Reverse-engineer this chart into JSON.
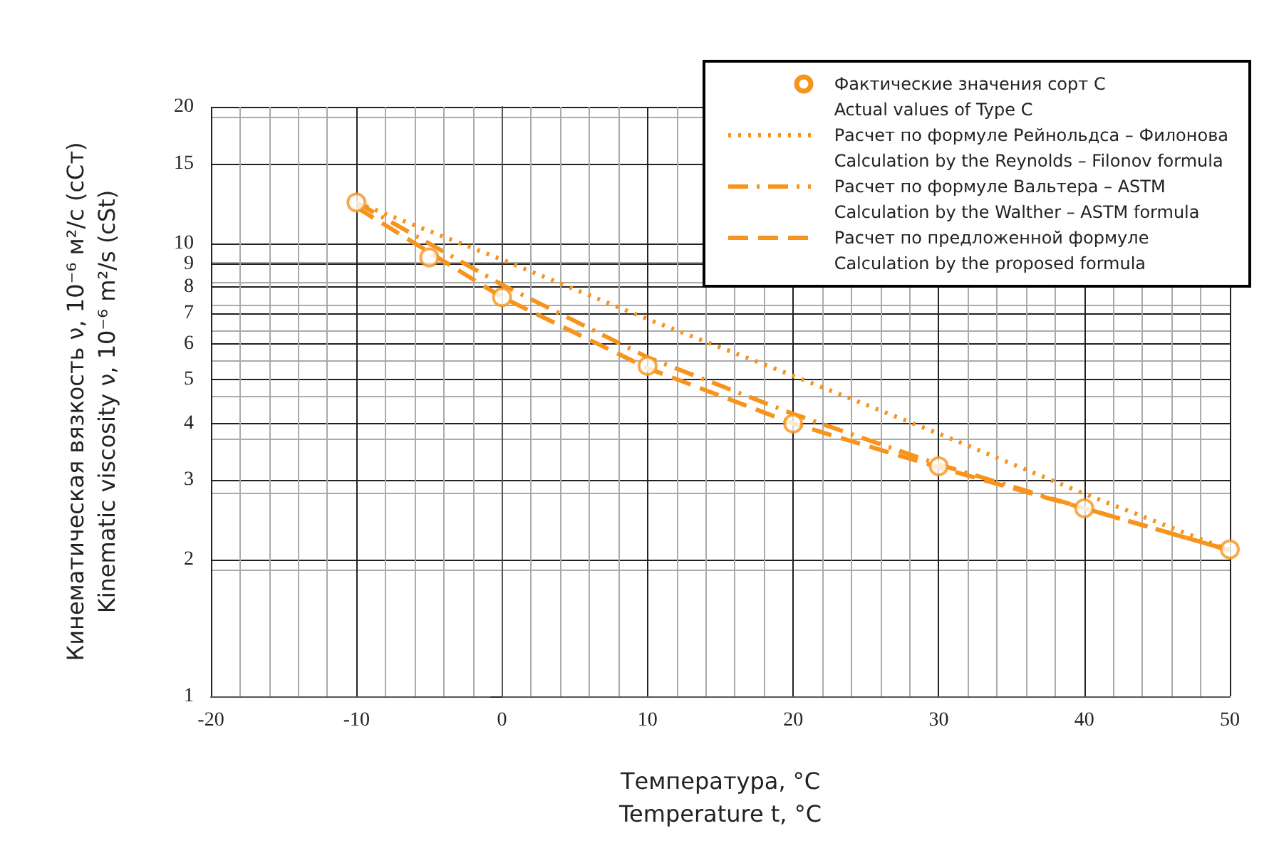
{
  "chart_data": {
    "type": "line",
    "xlabel": "Температура, °С\nTemperature t, °C",
    "ylabel": "Кинематическая вязкость ν, 10⁻⁶ м²/с (сСт)\nKinematic viscosity ν, 10⁻⁶ m²/s (cSt)",
    "xlim": [
      -20,
      50
    ],
    "xticks": [
      -20,
      -10,
      0,
      10,
      20,
      30,
      40,
      50
    ],
    "ylim": [
      1,
      20
    ],
    "yticks": [
      1,
      2,
      3,
      4,
      5,
      6,
      7,
      8,
      9,
      10,
      15,
      20
    ],
    "log": "y",
    "grid": true,
    "legend": "top right",
    "series": [
      {
        "name": "Фактические значения сорт С\nActual values of Type C",
        "type": "scatter",
        "marker": "circle",
        "color": "#f7941d",
        "x": [
          -10,
          -5,
          0,
          10,
          20,
          30,
          40,
          50
        ],
        "values": [
          12.3,
          9.3,
          7.6,
          5.36,
          4.0,
          3.22,
          2.6,
          2.11
        ]
      },
      {
        "name": "Расчет по формуле Рейнольдса – Филонова\nCalculation by the Reynolds – Filonov formula",
        "type": "line",
        "line_style": "dotted",
        "marker": "none",
        "color": "#f7941d",
        "x": [
          -10,
          0,
          10,
          20,
          30,
          40,
          50
        ],
        "values": [
          12.3,
          9.2,
          6.8,
          5.1,
          3.8,
          2.8,
          2.1
        ]
      },
      {
        "name": "Расчет по формуле Вальтера – ASTM\nCalculation by the Walther – ASTM formula",
        "type": "line",
        "line_style": "dashdot",
        "marker": "none",
        "color": "#f7941d",
        "x": [
          -10,
          0,
          10,
          20,
          30,
          40,
          50
        ],
        "values": [
          12.3,
          8.1,
          5.6,
          4.2,
          3.25,
          2.6,
          2.1
        ]
      },
      {
        "name": "Расчет по предложенной формуле\nCalculation by the proposed formula",
        "type": "line",
        "line_style": "dashed",
        "marker": "none",
        "color": "#f7941d",
        "x": [
          -10,
          0,
          10,
          20,
          30,
          40,
          50
        ],
        "values": [
          12.0,
          7.6,
          5.3,
          4.0,
          3.2,
          2.6,
          2.1
        ]
      }
    ]
  }
}
